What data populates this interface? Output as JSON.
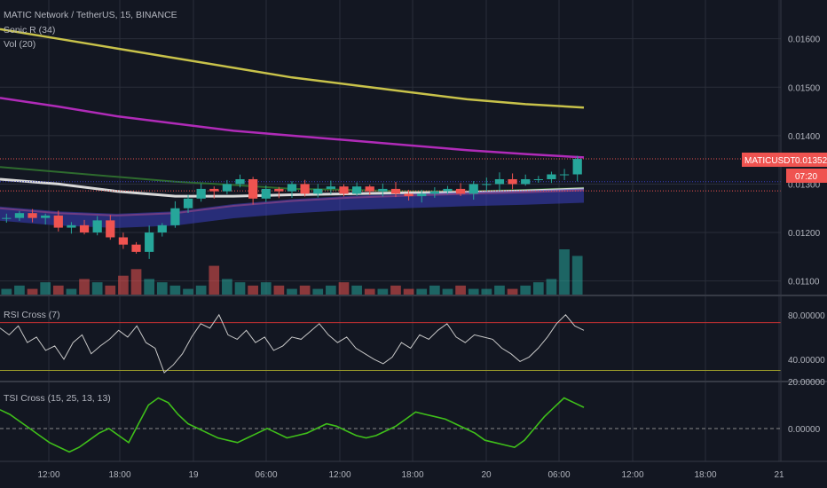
{
  "header": {
    "title": "MATIC Network / TetherUS, 15, BINANCE",
    "ind1": "Sonic R (34)",
    "ind2": "Vol (20)"
  },
  "price_axis": {
    "ticks": [
      "0.01600",
      "0.01500",
      "0.01400",
      "0.01300",
      "0.01200",
      "0.01100"
    ]
  },
  "price_tag": {
    "symbol": "MATICUSDT",
    "value": "0.01352",
    "timer": "07:20"
  },
  "rsi": {
    "label": "RSI Cross (7)",
    "ticks": [
      "80.00000",
      "40.00000"
    ]
  },
  "tsi": {
    "label": "TSI Cross (15, 25, 13, 13)",
    "ticks": [
      "20.00000",
      "0.00000"
    ]
  },
  "time_axis": {
    "ticks": [
      "12:00",
      "18:00",
      "19",
      "06:00",
      "12:00",
      "18:00",
      "20",
      "06:00",
      "12:00",
      "18:00",
      "21"
    ]
  },
  "colors": {
    "background": "#131722",
    "grid": "#2a2e39",
    "up": "#26a69a",
    "down": "#ef5350",
    "ema_yellow": "#c8c24a",
    "ema_magenta": "#b02bb8",
    "ema_green": "#2e6b2e",
    "ema_white": "#d8d8d8",
    "ema_red": "#b03a3a",
    "band_blue": "#3b3fbf",
    "rsi_line": "#c8c8c8",
    "tsi_line": "#3fbf1a",
    "price_tag": "#ef5350",
    "rsi_upper": "#c83232",
    "rsi_lower": "#9a9a2a"
  },
  "chart_data": [
    {
      "type": "candlestick",
      "title": "MATIC Network / TetherUS, 15, BINANCE",
      "y_ticks": [
        0.016,
        0.015,
        0.014,
        0.013,
        0.012,
        0.011
      ],
      "ylim": [
        0.0107,
        0.0168
      ],
      "x_ticks": [
        "12:00",
        "18:00",
        "19",
        "06:00",
        "12:00",
        "18:00",
        "20",
        "06:00",
        "12:00",
        "18:00",
        "21"
      ],
      "last_price": 0.01352,
      "price_path": [
        0.0123,
        0.0124,
        0.0123,
        0.01235,
        0.0121,
        0.01215,
        0.012,
        0.01225,
        0.0119,
        0.01175,
        0.0116,
        0.012,
        0.01215,
        0.0125,
        0.0127,
        0.0129,
        0.01285,
        0.013,
        0.0131,
        0.0127,
        0.0129,
        0.01285,
        0.013,
        0.0128,
        0.0129,
        0.01295,
        0.0128,
        0.01295,
        0.01285,
        0.0129,
        0.0128,
        0.01275,
        0.0128,
        0.01285,
        0.0129,
        0.0128,
        0.013,
        0.013,
        0.0131,
        0.013,
        0.0131,
        0.0131,
        0.0132,
        0.0132,
        0.01352
      ],
      "series": [
        {
          "name": "Sonic R (34)",
          "values": [
            0.0162,
            0.016,
            0.0158,
            0.0156,
            0.0154,
            0.0152,
            0.01505,
            0.0149,
            0.01475,
            0.01465,
            0.01458
          ]
        },
        {
          "values": [
            0.01478,
            0.0146,
            0.0144,
            0.01425,
            0.0141,
            0.014,
            0.0139,
            0.0138,
            0.0137,
            0.01362,
            0.01355
          ]
        },
        {
          "values": [
            0.01335,
            0.01325,
            0.01315,
            0.01305,
            0.01298,
            0.0129,
            0.01288,
            0.01285,
            0.01285,
            0.01288,
            0.01292
          ]
        },
        {
          "values": [
            0.0131,
            0.013,
            0.01285,
            0.01275,
            0.01275,
            0.01278,
            0.0128,
            0.01282,
            0.01283,
            0.01286,
            0.0129
          ]
        },
        {
          "values": [
            0.0125,
            0.0124,
            0.01235,
            0.0124,
            0.01255,
            0.01265,
            0.01272,
            0.01276,
            0.0128,
            0.01283,
            0.01287
          ]
        }
      ],
      "volume": [
        2,
        3,
        2,
        4,
        3,
        2,
        5,
        4,
        3,
        6,
        8,
        5,
        4,
        3,
        2,
        3,
        9,
        5,
        4,
        3,
        4,
        3,
        2,
        3,
        2,
        3,
        4,
        3,
        2,
        2,
        3,
        2,
        2,
        3,
        2,
        3,
        2,
        2,
        3,
        2,
        3,
        4,
        5,
        14,
        12
      ]
    },
    {
      "type": "line",
      "title": "RSI Cross (7)",
      "y_ticks": [
        80,
        40
      ],
      "ylim": [
        20,
        95
      ],
      "levels": [
        73,
        30
      ],
      "values": [
        68,
        62,
        70,
        55,
        60,
        48,
        52,
        40,
        55,
        62,
        45,
        52,
        58,
        66,
        60,
        70,
        55,
        50,
        28,
        35,
        45,
        60,
        72,
        68,
        80,
        62,
        58,
        66,
        55,
        60,
        48,
        52,
        60,
        58,
        65,
        72,
        62,
        55,
        60,
        50,
        45,
        40,
        36,
        42,
        55,
        50,
        62,
        58,
        66,
        72,
        60,
        55,
        62,
        60,
        58,
        50,
        45,
        38,
        42,
        50,
        60,
        72,
        80,
        70,
        66
      ]
    },
    {
      "type": "line",
      "title": "TSI Cross (15, 25, 13, 13)",
      "y_ticks": [
        20,
        0
      ],
      "ylim": [
        -14,
        20
      ],
      "values": [
        8,
        6,
        3,
        0,
        -3,
        -6,
        -8,
        -10,
        -8,
        -5,
        -2,
        0,
        -3,
        -6,
        2,
        10,
        13,
        11,
        6,
        2,
        0,
        -2,
        -4,
        -5,
        -6,
        -4,
        -2,
        0,
        -2,
        -4,
        -3,
        -2,
        0,
        2,
        1,
        -1,
        -3,
        -4,
        -3,
        -1,
        1,
        4,
        7,
        6,
        5,
        4,
        2,
        0,
        -2,
        -5,
        -6,
        -7,
        -8,
        -5,
        0,
        5,
        9,
        13,
        11,
        9
      ]
    }
  ]
}
